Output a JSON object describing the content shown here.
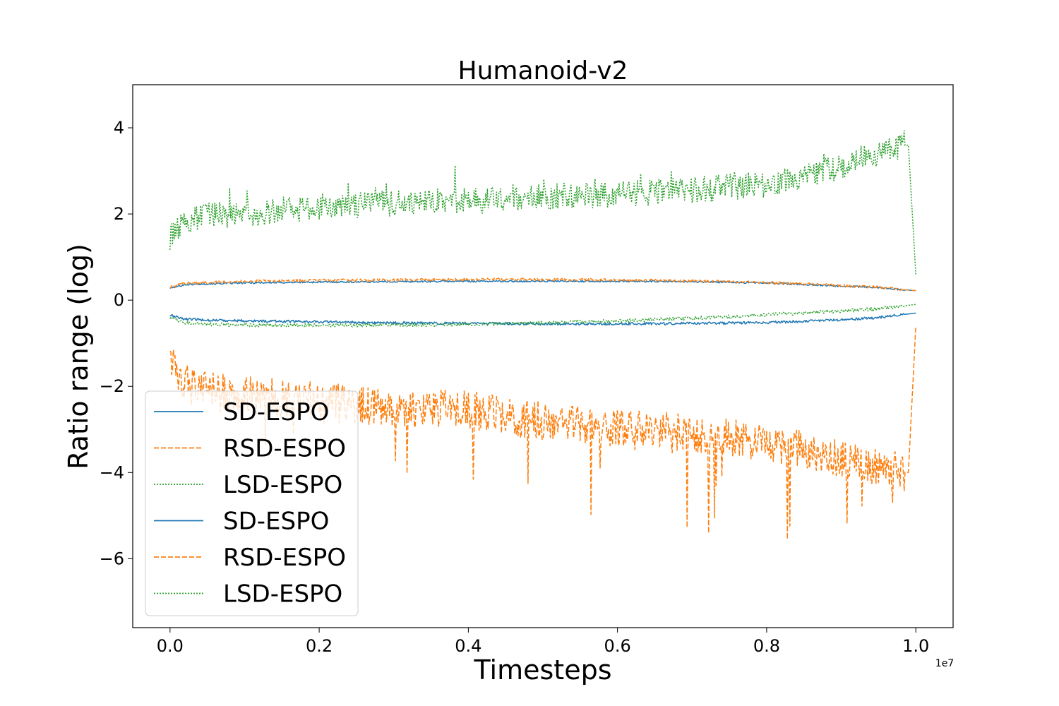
{
  "chart_data": {
    "type": "line",
    "title": "Humanoid-v2",
    "xlabel": "Timesteps",
    "ylabel": "Ratio range (log)",
    "x_offset_label": "1e7",
    "xlim": [
      -0.05,
      1.05
    ],
    "ylim": [
      -7.6,
      5.0
    ],
    "xticks": [
      0.0,
      0.2,
      0.4,
      0.6,
      0.8,
      1.0
    ],
    "xtick_labels": [
      "0.0",
      "0.2",
      "0.4",
      "0.6",
      "0.8",
      "1.0"
    ],
    "yticks": [
      4,
      2,
      0,
      -2,
      -4,
      -6
    ],
    "ytick_labels": [
      "4",
      "2",
      "0",
      "−2",
      "−4",
      "−6"
    ],
    "grid": false,
    "legend_position": "lower-left",
    "series": [
      {
        "name": "SD-ESPO",
        "role": "upper",
        "color": "#1f77b4",
        "style": "solid",
        "x": [
          0.0,
          0.02,
          0.05,
          0.1,
          0.2,
          0.3,
          0.4,
          0.5,
          0.6,
          0.7,
          0.8,
          0.9,
          0.95,
          1.0
        ],
        "values": [
          0.28,
          0.36,
          0.38,
          0.4,
          0.42,
          0.43,
          0.44,
          0.44,
          0.44,
          0.43,
          0.4,
          0.33,
          0.29,
          0.22
        ],
        "noise": 0.02
      },
      {
        "name": "RSD-ESPO",
        "role": "upper",
        "color": "#ff7f0e",
        "style": "dashed",
        "x": [
          0.0,
          0.02,
          0.05,
          0.1,
          0.2,
          0.3,
          0.4,
          0.5,
          0.6,
          0.7,
          0.8,
          0.9,
          0.95,
          1.0
        ],
        "values": [
          0.3,
          0.39,
          0.41,
          0.44,
          0.46,
          0.47,
          0.48,
          0.48,
          0.47,
          0.45,
          0.41,
          0.34,
          0.3,
          0.22
        ],
        "noise": 0.03
      },
      {
        "name": "LSD-ESPO",
        "role": "upper",
        "color": "#2ca02c",
        "style": "dotted",
        "x": [
          0.0,
          0.02,
          0.05,
          0.1,
          0.2,
          0.3,
          0.4,
          0.5,
          0.6,
          0.7,
          0.8,
          0.9,
          0.97,
          0.99,
          1.0
        ],
        "values": [
          1.45,
          1.8,
          1.95,
          2.0,
          2.15,
          2.25,
          2.3,
          2.4,
          2.45,
          2.55,
          2.7,
          3.1,
          3.55,
          3.6,
          0.6
        ],
        "noise": 0.3
      },
      {
        "name": "SD-ESPO",
        "role": "lower",
        "color": "#1f77b4",
        "style": "solid",
        "x": [
          0.0,
          0.02,
          0.05,
          0.1,
          0.2,
          0.3,
          0.4,
          0.5,
          0.6,
          0.7,
          0.8,
          0.9,
          0.95,
          1.0
        ],
        "values": [
          -0.35,
          -0.44,
          -0.46,
          -0.48,
          -0.5,
          -0.53,
          -0.54,
          -0.55,
          -0.55,
          -0.54,
          -0.52,
          -0.46,
          -0.4,
          -0.3
        ],
        "noise": 0.03
      },
      {
        "name": "RSD-ESPO",
        "role": "lower",
        "color": "#ff7f0e",
        "style": "dashed",
        "x": [
          0.0,
          0.02,
          0.05,
          0.1,
          0.2,
          0.3,
          0.4,
          0.5,
          0.6,
          0.7,
          0.8,
          0.9,
          0.95,
          0.99,
          1.0
        ],
        "values": [
          -1.45,
          -1.9,
          -2.1,
          -2.2,
          -2.35,
          -2.5,
          -2.55,
          -2.8,
          -2.95,
          -3.1,
          -3.3,
          -3.7,
          -3.9,
          -4.0,
          -0.6
        ],
        "noise": 0.45
      },
      {
        "name": "LSD-ESPO",
        "role": "lower",
        "color": "#2ca02c",
        "style": "dotted",
        "x": [
          0.0,
          0.02,
          0.05,
          0.1,
          0.2,
          0.3,
          0.4,
          0.5,
          0.6,
          0.7,
          0.8,
          0.9,
          0.95,
          1.0
        ],
        "values": [
          -0.4,
          -0.52,
          -0.56,
          -0.58,
          -0.58,
          -0.58,
          -0.56,
          -0.53,
          -0.48,
          -0.42,
          -0.34,
          -0.25,
          -0.2,
          -0.1
        ],
        "noise": 0.04
      }
    ]
  }
}
